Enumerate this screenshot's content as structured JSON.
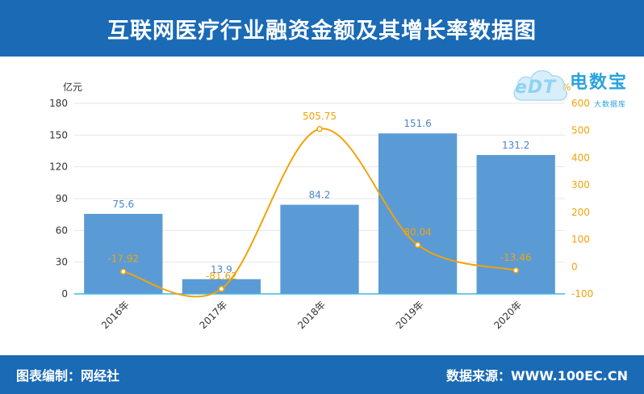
{
  "header": {
    "title": "互联网医疗行业融资金额及其增长率数据图"
  },
  "footer": {
    "left": "图表编制：网经社",
    "right": "数据来源：WWW.100EC.CN"
  },
  "logo": {
    "main": "电数宝",
    "sub": "大数据库",
    "mark": "eDT"
  },
  "chart_data": {
    "type": "bar",
    "categories": [
      "2016年",
      "2017年",
      "2018年",
      "2019年",
      "2020年"
    ],
    "series": [
      {
        "type": "bar",
        "axis": "left",
        "color": "#5b9bd5",
        "values": [
          75.6,
          13.9,
          84.2,
          151.6,
          131.2
        ],
        "labels": [
          "75.6",
          "13.9",
          "84.2",
          "151.6",
          "131.2"
        ]
      },
      {
        "type": "line",
        "axis": "right",
        "smooth": true,
        "color": "#f0a30a",
        "values": [
          -17.92,
          -81.62,
          505.75,
          80.04,
          -13.46
        ],
        "labels": [
          "-17.92",
          "-81.62",
          "505.75",
          "80.04",
          "-13.46"
        ]
      }
    ],
    "y_left": {
      "label": "亿元",
      "min": 0,
      "max": 180,
      "ticks": [
        "0",
        "30",
        "60",
        "90",
        "120",
        "150",
        "180"
      ]
    },
    "y_right": {
      "label": "%",
      "min": -100,
      "max": 600,
      "ticks": [
        "-100",
        "0",
        "100",
        "200",
        "300",
        "400",
        "500",
        "600"
      ]
    },
    "grid": true
  }
}
